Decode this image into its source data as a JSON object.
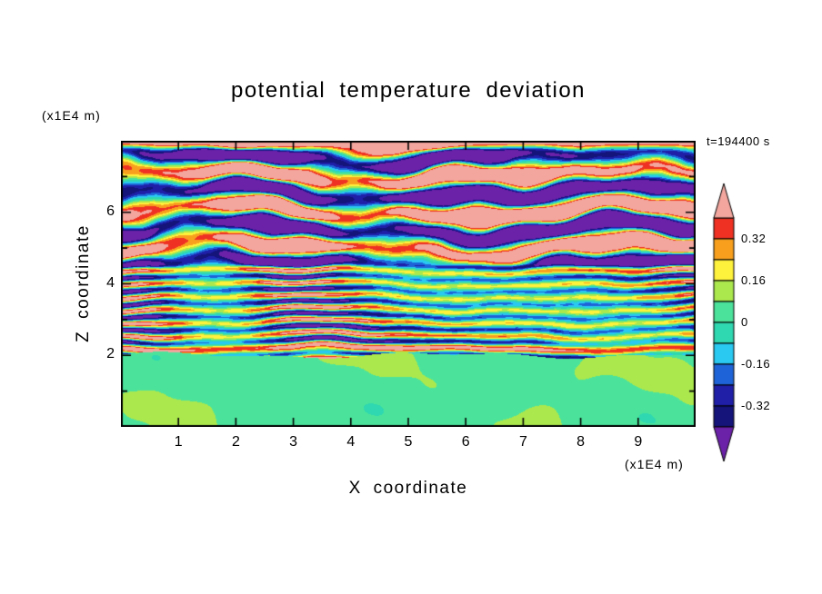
{
  "chart_data": {
    "type": "heatmap",
    "title": "potential temperature deviation",
    "time_label": "t=194400 s",
    "xlabel": "X coordinate",
    "ylabel": "Z coordinate",
    "x_axis_unit": "(x1E4 m)",
    "y_axis_unit": "(x1E4 m)",
    "xlim": [
      0,
      10
    ],
    "ylim": [
      0,
      8
    ],
    "x_ticks": [
      1,
      2,
      3,
      4,
      5,
      6,
      7,
      8,
      9
    ],
    "y_ticks": [
      2,
      4,
      6
    ],
    "y_minor_ticks": [
      1,
      3,
      5,
      7
    ],
    "grid": false,
    "colorbar": {
      "orientation": "vertical",
      "position": "right",
      "tick_labels": [
        "0.32",
        "0.16",
        "0",
        "-0.16",
        "-0.32"
      ],
      "tick_values": [
        0.32,
        0.16,
        0,
        -0.16,
        -0.32
      ],
      "level_min": -0.4,
      "level_max": 0.4,
      "level_step": 0.08,
      "colors_low_to_high": [
        "#6B21A8",
        "#14147A",
        "#1F1FA8",
        "#1E64D8",
        "#29C9F2",
        "#2FD8B0",
        "#4BE39B",
        "#ABE84D",
        "#FFF23C",
        "#F8A01E",
        "#EF3123",
        "#F2A69E"
      ],
      "under_color": "#6B21A8",
      "over_color": "#F2A69E"
    },
    "field_summary": "Horizontally layered wave pattern: thick alternating salmon (>0.4) and purple (<-0.4) layers above z~4.5; fine multicolored filaments (cyan/green/yellow/orange/navy) between z~2 and 4.5; weak positive deviations (0 to 0.16, two greens) below z~2.",
    "frame_color": "#000000",
    "background_color": "#FFFFFF"
  }
}
